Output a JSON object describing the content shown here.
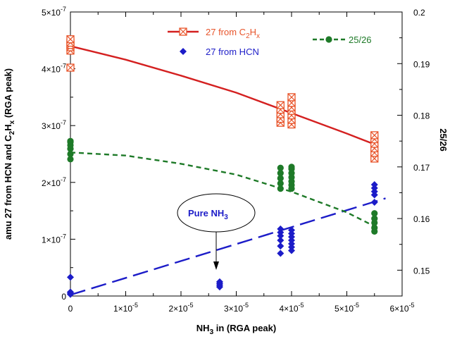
{
  "chart_data": {
    "type": "scatter",
    "x_axis": {
      "label_main": "NH",
      "label_sub": "3",
      "label_rest": " in (RGA peak)",
      "range": [
        0,
        6e-05
      ],
      "ticks": [
        0,
        1e-05,
        2e-05,
        3e-05,
        4e-05,
        5e-05,
        6e-05
      ],
      "tick_labels": [
        {
          "base": "0",
          "exp": ""
        },
        {
          "base": "1×10",
          "exp": "-5"
        },
        {
          "base": "2×10",
          "exp": "-5"
        },
        {
          "base": "3×10",
          "exp": "-5"
        },
        {
          "base": "4×10",
          "exp": "-5"
        },
        {
          "base": "5×10",
          "exp": "-5"
        },
        {
          "base": "6×10",
          "exp": "-5"
        }
      ]
    },
    "y_axis_left": {
      "label_parts": [
        {
          "t": "amu 27 from HCN and C",
          "sub": false
        },
        {
          "t": "2",
          "sub": true
        },
        {
          "t": "H",
          "sub": false
        },
        {
          "t": "x",
          "sub": true
        },
        {
          "t": " (RGA peak)",
          "sub": false
        }
      ],
      "range": [
        0,
        5e-07
      ],
      "ticks": [
        0,
        1e-07,
        2e-07,
        3e-07,
        4e-07,
        5e-07
      ],
      "tick_labels": [
        {
          "base": "0",
          "exp": ""
        },
        {
          "base": "1×10",
          "exp": "-7"
        },
        {
          "base": "2×10",
          "exp": "-7"
        },
        {
          "base": "3×10",
          "exp": "-7"
        },
        {
          "base": "4×10",
          "exp": "-7"
        },
        {
          "base": "5×10",
          "exp": "-7"
        }
      ]
    },
    "y_axis_right": {
      "label": "25/26",
      "range": [
        0.145,
        0.2
      ],
      "ticks": [
        0.15,
        0.16,
        0.17,
        0.18,
        0.19,
        0.2
      ],
      "tick_labels": [
        "0.15",
        "0.16",
        "0.17",
        "0.18",
        "0.19",
        "0.2"
      ]
    },
    "series": [
      {
        "name_parts": [
          {
            "t": "27 from C",
            "sub": false
          },
          {
            "t": "2",
            "sub": true
          },
          {
            "t": "H",
            "sub": false
          },
          {
            "t": "x",
            "sub": true
          }
        ],
        "axis": "left",
        "marker": "crossed-square",
        "color": "#e8542a",
        "points": [
          [
            0,
            4.02e-07
          ],
          [
            0,
            4.32e-07
          ],
          [
            0,
            4.38e-07
          ],
          [
            0,
            4.42e-07
          ],
          [
            0,
            4.46e-07
          ],
          [
            0,
            4.52e-07
          ],
          [
            3.8e-05,
            3.05e-07
          ],
          [
            3.8e-05,
            3.12e-07
          ],
          [
            3.8e-05,
            3.2e-07
          ],
          [
            3.8e-05,
            3.28e-07
          ],
          [
            3.8e-05,
            3.36e-07
          ],
          [
            4e-05,
            3.02e-07
          ],
          [
            4e-05,
            3.1e-07
          ],
          [
            4e-05,
            3.18e-07
          ],
          [
            4e-05,
            3.26e-07
          ],
          [
            4e-05,
            3.32e-07
          ],
          [
            4e-05,
            3.4e-07
          ],
          [
            4e-05,
            3.5e-07
          ],
          [
            5.5e-05,
            2.42e-07
          ],
          [
            5.5e-05,
            2.52e-07
          ],
          [
            5.5e-05,
            2.6e-07
          ],
          [
            5.5e-05,
            2.68e-07
          ],
          [
            5.5e-05,
            2.76e-07
          ],
          [
            5.5e-05,
            2.83e-07
          ]
        ],
        "fit": {
          "color": "#d42020",
          "dash": "",
          "points": [
            [
              0,
              4.4e-07
            ],
            [
              1e-05,
              4.16e-07
            ],
            [
              2e-05,
              3.88e-07
            ],
            [
              3e-05,
              3.58e-07
            ],
            [
              4e-05,
              3.22e-07
            ],
            [
              5e-05,
              2.86e-07
            ],
            [
              5.5e-05,
              2.67e-07
            ]
          ]
        }
      },
      {
        "name": "27 from HCN",
        "axis": "left",
        "marker": "diamond",
        "color": "#1c1cc8",
        "points": [
          [
            0,
            3e-09
          ],
          [
            0,
            5e-09
          ],
          [
            0,
            7e-09
          ],
          [
            0,
            3.3e-08
          ],
          [
            2.7e-05,
            1.6e-08
          ],
          [
            2.7e-05,
            1.9e-08
          ],
          [
            2.7e-05,
            2.2e-08
          ],
          [
            2.7e-05,
            2.5e-08
          ],
          [
            3.8e-05,
            7.5e-08
          ],
          [
            3.8e-05,
            8.8e-08
          ],
          [
            3.8e-05,
            9.8e-08
          ],
          [
            3.8e-05,
            1.06e-07
          ],
          [
            3.8e-05,
            1.12e-07
          ],
          [
            3.8e-05,
            1.18e-07
          ],
          [
            4e-05,
            8e-08
          ],
          [
            4e-05,
            8.6e-08
          ],
          [
            4e-05,
            9.2e-08
          ],
          [
            4e-05,
            9.8e-08
          ],
          [
            4e-05,
            1.04e-07
          ],
          [
            4e-05,
            1.1e-07
          ],
          [
            4e-05,
            1.16e-07
          ],
          [
            5.5e-05,
            1.65e-07
          ],
          [
            5.5e-05,
            1.78e-07
          ],
          [
            5.5e-05,
            1.84e-07
          ],
          [
            5.5e-05,
            1.9e-07
          ],
          [
            5.5e-05,
            1.96e-07
          ]
        ],
        "fit": {
          "color": "#1c1cc8",
          "dash": "22,9",
          "points": [
            [
              0,
              2e-09
            ],
            [
              5.7e-05,
              1.72e-07
            ]
          ]
        }
      },
      {
        "name": "25/26",
        "axis": "right",
        "marker": "circle",
        "color": "#1e7a28",
        "points": [
          [
            0,
            0.1715
          ],
          [
            0,
            0.1725
          ],
          [
            0,
            0.1735
          ],
          [
            0,
            0.1742
          ],
          [
            0,
            0.1748
          ],
          [
            0,
            0.175
          ],
          [
            3.8e-05,
            0.1658
          ],
          [
            3.8e-05,
            0.1668
          ],
          [
            3.8e-05,
            0.1678
          ],
          [
            3.8e-05,
            0.1688
          ],
          [
            3.8e-05,
            0.1698
          ],
          [
            4e-05,
            0.1658
          ],
          [
            4e-05,
            0.1665
          ],
          [
            4e-05,
            0.1672
          ],
          [
            4e-05,
            0.168
          ],
          [
            4e-05,
            0.1688
          ],
          [
            4e-05,
            0.1696
          ],
          [
            4e-05,
            0.17
          ],
          [
            5.5e-05,
            0.1575
          ],
          [
            5.5e-05,
            0.1582
          ],
          [
            5.5e-05,
            0.1592
          ],
          [
            5.5e-05,
            0.16
          ],
          [
            5.5e-05,
            0.161
          ]
        ],
        "fit": {
          "color": "#1e7a28",
          "dash": "7,5",
          "points": [
            [
              0,
              0.1728
            ],
            [
              1e-05,
              0.1722
            ],
            [
              2e-05,
              0.1706
            ],
            [
              3e-05,
              0.1685
            ],
            [
              4e-05,
              0.1652
            ],
            [
              5e-05,
              0.1612
            ],
            [
              5.5e-05,
              0.1585
            ]
          ]
        }
      }
    ],
    "annotation": {
      "text_main": "Pure NH",
      "text_sub": "3",
      "color": "#1c1cc8",
      "arrow_to": [
        2.7e-05,
        3.1e-08
      ]
    }
  }
}
